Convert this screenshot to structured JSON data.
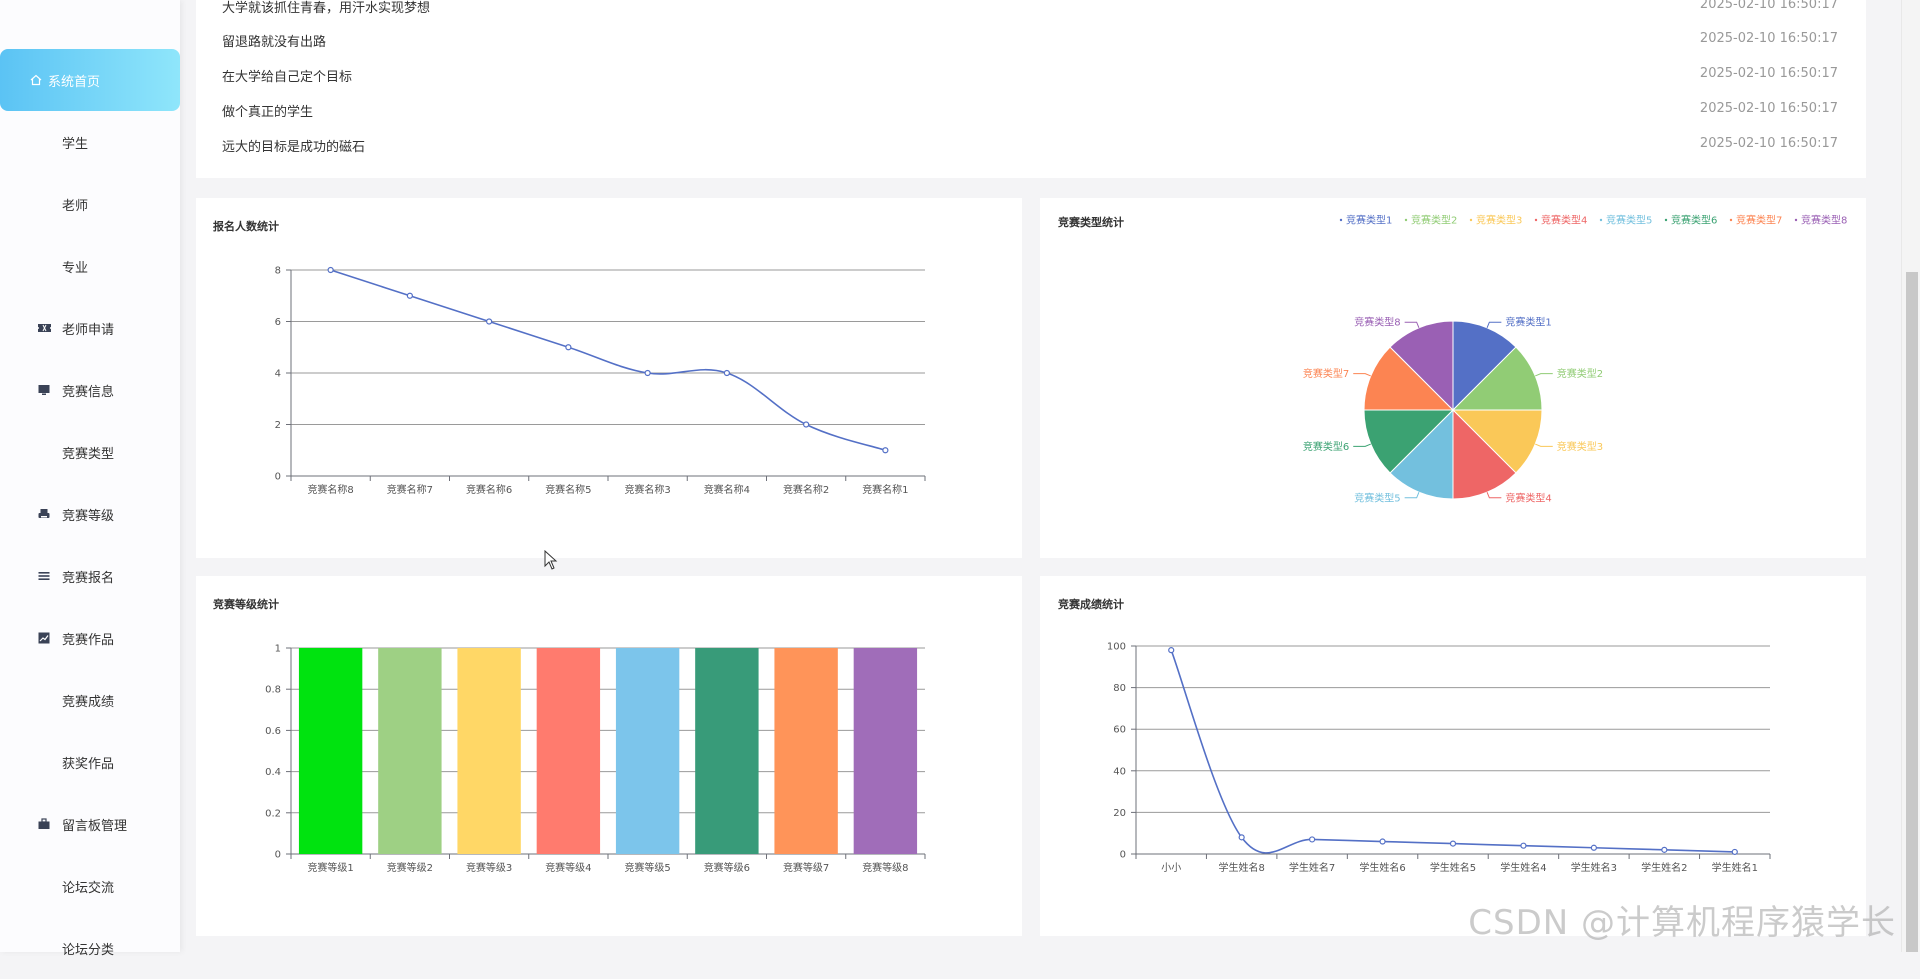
{
  "sidebar": {
    "items": [
      {
        "label": "系统首页",
        "icon": "home-icon"
      },
      {
        "label": "学生",
        "icon": "grid-icon"
      },
      {
        "label": "老师",
        "icon": "grid-icon"
      },
      {
        "label": "专业",
        "icon": "grid-icon"
      },
      {
        "label": "老师申请",
        "icon": "ticket-icon"
      },
      {
        "label": "竞赛信息",
        "icon": "monitor-icon"
      },
      {
        "label": "竞赛类型",
        "icon": "grid-icon"
      },
      {
        "label": "竞赛等级",
        "icon": "printer-icon"
      },
      {
        "label": "竞赛报名",
        "icon": "list-icon"
      },
      {
        "label": "竞赛作品",
        "icon": "chart-icon"
      },
      {
        "label": "竞赛成绩",
        "icon": "grid-icon"
      },
      {
        "label": "获奖作品",
        "icon": "grid-icon"
      },
      {
        "label": "留言板管理",
        "icon": "briefcase-icon"
      },
      {
        "label": "论坛交流",
        "icon": "grid-icon"
      },
      {
        "label": "论坛分类",
        "icon": "grid-icon"
      }
    ]
  },
  "news": {
    "rows": [
      {
        "title": "大学就该抓住青春，用汗水实现梦想",
        "date": "2025-02-10 16:50:17"
      },
      {
        "title": "留退路就没有出路",
        "date": "2025-02-10 16:50:17"
      },
      {
        "title": "在大学给自己定个目标",
        "date": "2025-02-10 16:50:17"
      },
      {
        "title": "做个真正的学生",
        "date": "2025-02-10 16:50:17"
      },
      {
        "title": "远大的目标是成功的磁石",
        "date": "2025-02-10 16:50:17"
      }
    ]
  },
  "chart_data": [
    {
      "id": "signup",
      "type": "line",
      "title": "报名人数统计",
      "categories": [
        "竞赛名称8",
        "竞赛名称7",
        "竞赛名称6",
        "竞赛名称5",
        "竞赛名称3",
        "竞赛名称4",
        "竞赛名称2",
        "竞赛名称1"
      ],
      "values": [
        8,
        7,
        6,
        5,
        4,
        4,
        2,
        1
      ],
      "ylim": [
        0,
        8
      ],
      "yticks": [
        0,
        2,
        4,
        6,
        8
      ],
      "color": "#5470c6"
    },
    {
      "id": "types",
      "type": "pie",
      "title": "竞赛类型统计",
      "labels": [
        "竞赛类型1",
        "竞赛类型2",
        "竞赛类型3",
        "竞赛类型4",
        "竞赛类型5",
        "竞赛类型6",
        "竞赛类型7",
        "竞赛类型8"
      ],
      "values": [
        1,
        1,
        1,
        1,
        1,
        1,
        1,
        1
      ],
      "colors": [
        "#5470c6",
        "#91cc75",
        "#fac858",
        "#ee6666",
        "#73c0de",
        "#3ba272",
        "#fc8452",
        "#9a60b4"
      ],
      "legend": "top-right"
    },
    {
      "id": "levels",
      "type": "bar",
      "title": "竞赛等级统计",
      "categories": [
        "竞赛等级1",
        "竞赛等级2",
        "竞赛等级3",
        "竞赛等级4",
        "竞赛等级5",
        "竞赛等级6",
        "竞赛等级7",
        "竞赛等级8"
      ],
      "values": [
        1,
        1,
        1,
        1,
        1,
        1,
        1,
        1
      ],
      "ylim": [
        0,
        1
      ],
      "yticks": [
        0,
        0.2,
        0.4,
        0.6,
        0.8,
        1
      ],
      "colors": [
        "#00e30f",
        "#9ed084",
        "#ffd766",
        "#ff7b6e",
        "#7cc5eb",
        "#389b79",
        "#ff9459",
        "#a06db9"
      ]
    },
    {
      "id": "scores",
      "type": "line",
      "title": "竞赛成绩统计",
      "categories": [
        "小小",
        "学生姓名8",
        "学生姓名7",
        "学生姓名6",
        "学生姓名5",
        "学生姓名4",
        "学生姓名3",
        "学生姓名2",
        "学生姓名1"
      ],
      "values": [
        98,
        8,
        7,
        6,
        5,
        4,
        3,
        2,
        1
      ],
      "ylim": [
        0,
        100
      ],
      "yticks": [
        0,
        20,
        40,
        60,
        80,
        100
      ],
      "color": "#5470c6"
    }
  ],
  "watermark": "CSDN @计算机程序猿学长"
}
